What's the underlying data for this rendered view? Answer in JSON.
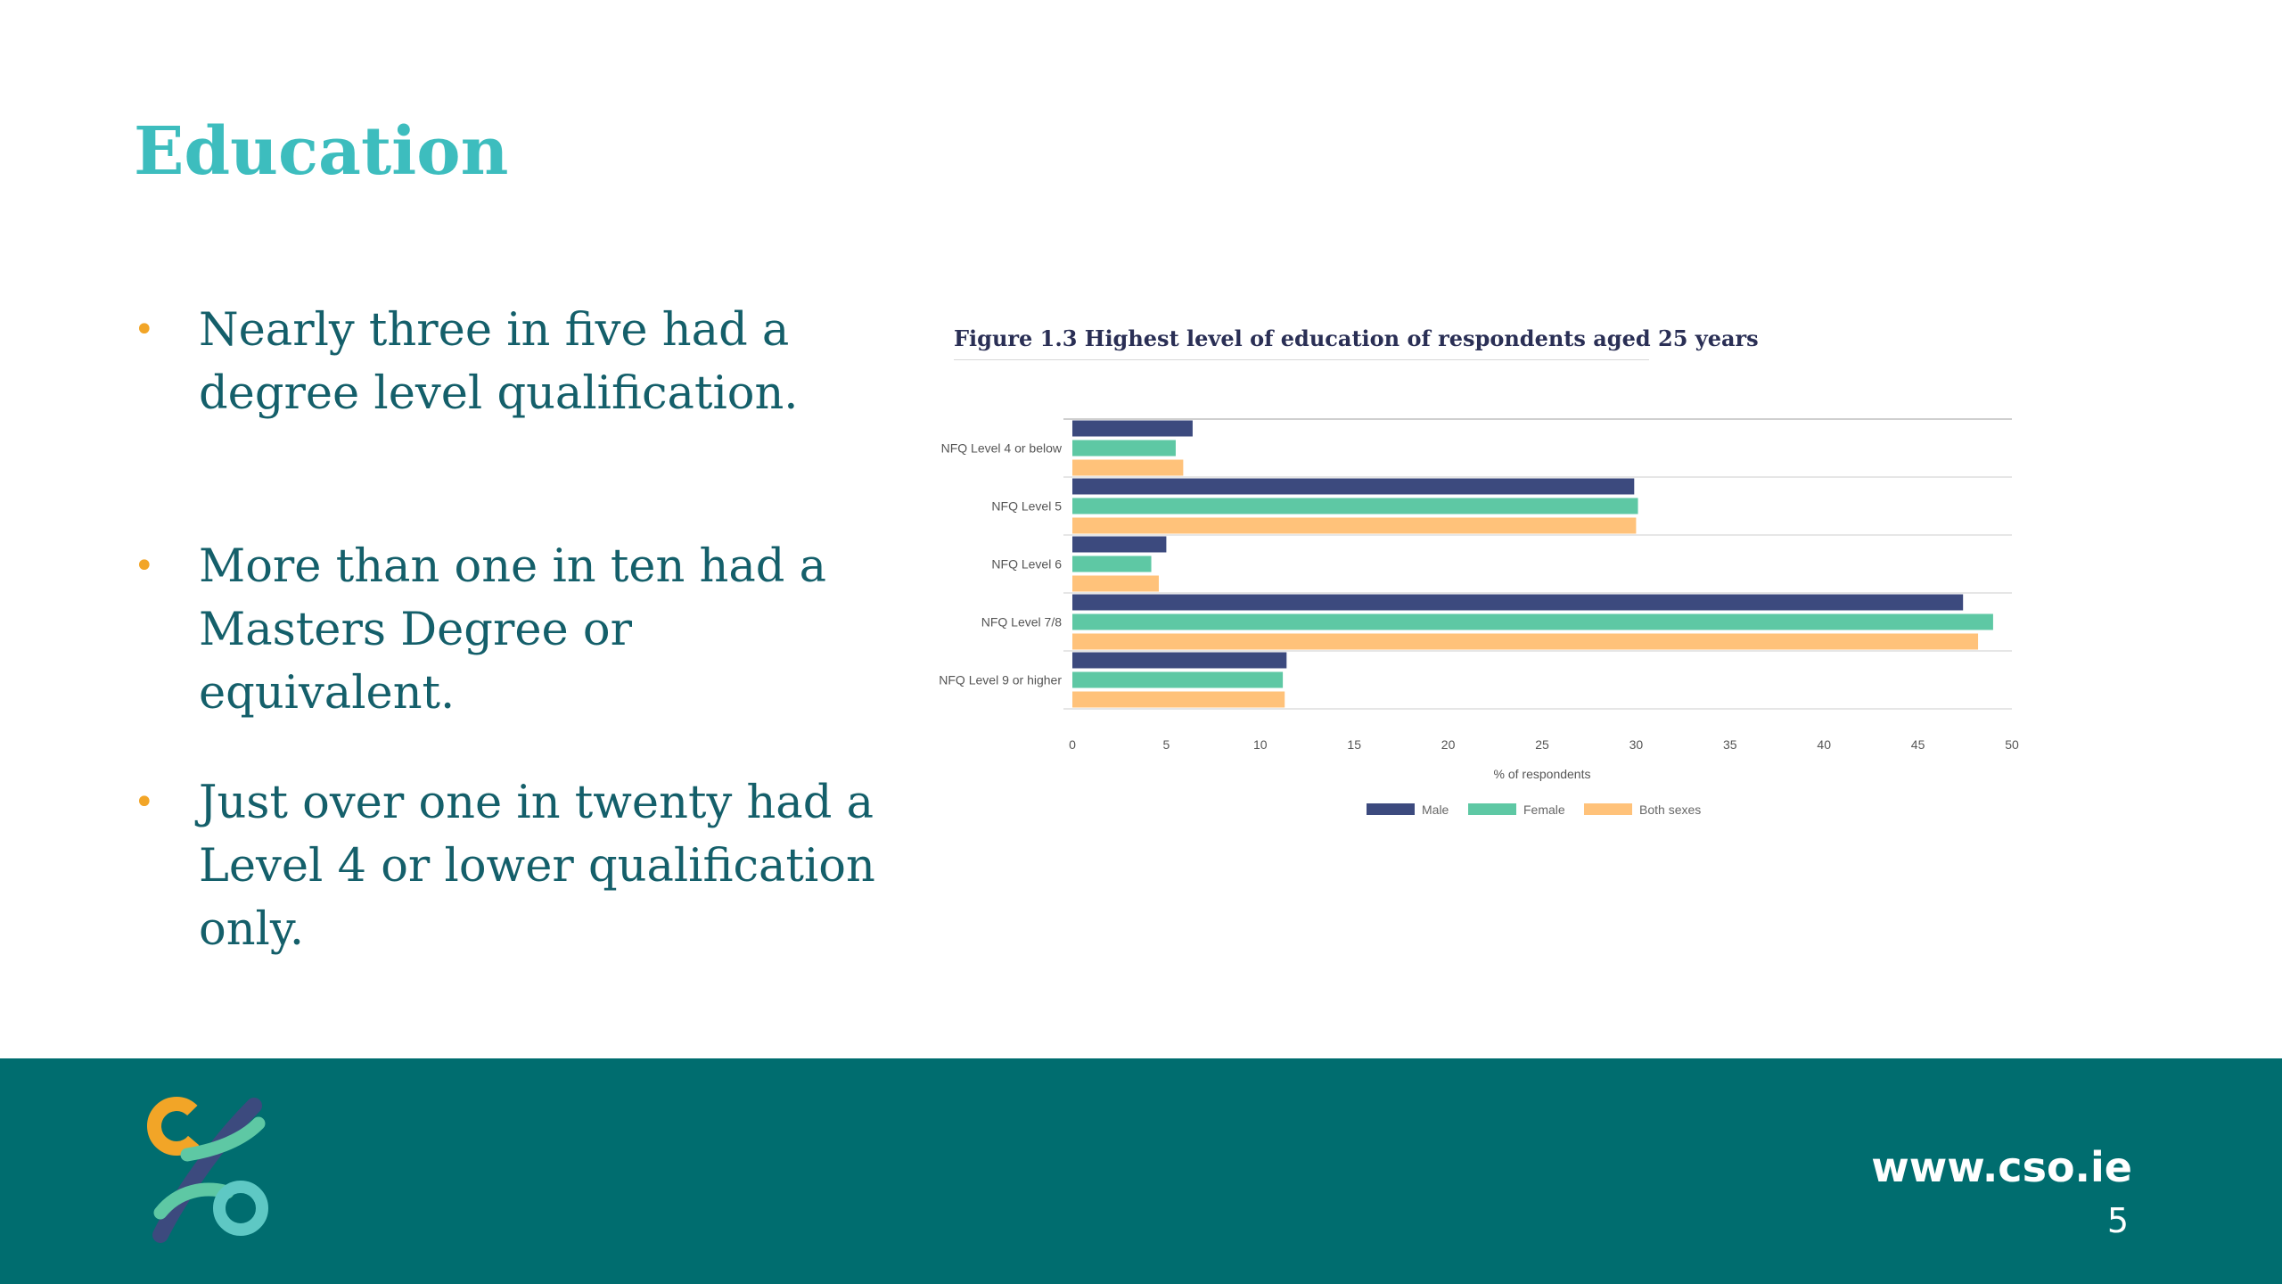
{
  "slide": {
    "title": "Education",
    "bullets": [
      "Nearly three in five had a degree level qualification.",
      "More than one in ten had a Masters Degree or equivalent.",
      "Just over one in twenty had a Level 4 or lower qualification only."
    ]
  },
  "footer": {
    "url": "www.cso.ie",
    "page_number": "5"
  },
  "chart_data": {
    "type": "bar",
    "orientation": "horizontal",
    "title": "Figure 1.3 Highest level of education of respondents aged 25 years",
    "xlabel": "% of respondents",
    "ylabel": "",
    "xlim": [
      0,
      50
    ],
    "xticks": [
      0,
      5,
      10,
      15,
      20,
      25,
      30,
      35,
      40,
      45,
      50
    ],
    "categories": [
      "NFQ Level 4 or below",
      "NFQ Level 5",
      "NFQ Level 6",
      "NFQ Level 7/8",
      "NFQ Level 9 or higher"
    ],
    "series": [
      {
        "name": "Male",
        "color": "#3c4a7e",
        "values": [
          6.4,
          29.9,
          5.0,
          47.4,
          11.4
        ]
      },
      {
        "name": "Female",
        "color": "#5ec8a4",
        "values": [
          5.5,
          30.1,
          4.2,
          49.0,
          11.2
        ]
      },
      {
        "name": "Both sexes",
        "color": "#ffc27a",
        "values": [
          5.9,
          30.0,
          4.6,
          48.2,
          11.3
        ]
      }
    ],
    "legend_position": "bottom",
    "grid": true
  }
}
